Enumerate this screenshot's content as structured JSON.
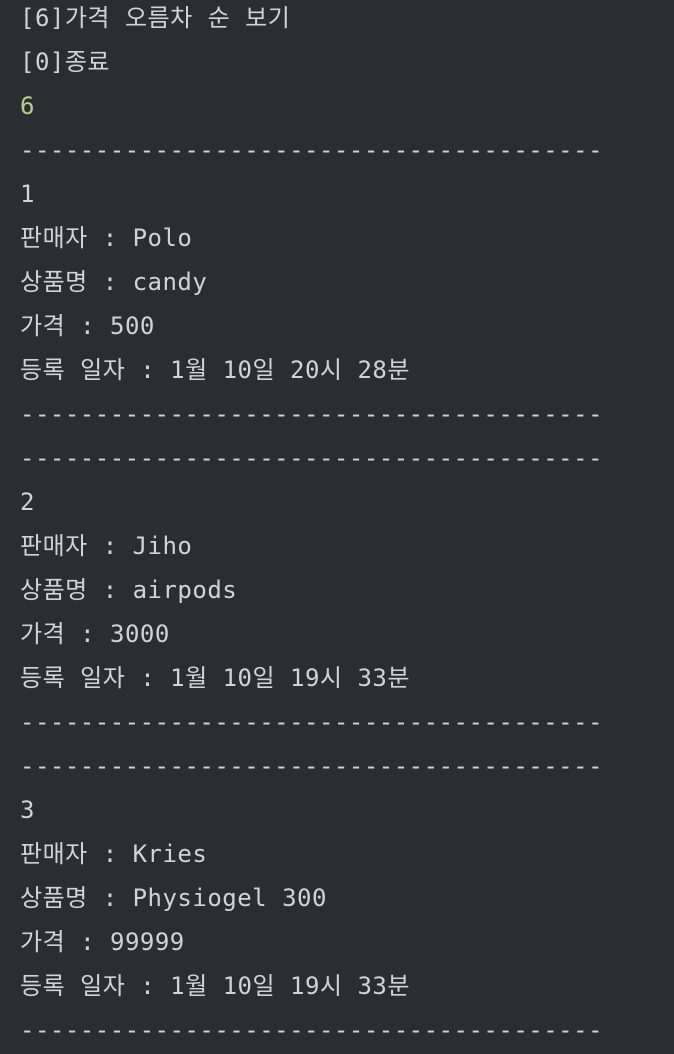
{
  "console": {
    "menu": {
      "sort_option": "[6]가격 오름차 순 보기",
      "exit_option": "[0]종료"
    },
    "user_input": "6",
    "separator": "---------------------------------------",
    "items": [
      {
        "index": "1",
        "seller": "판매자 : Polo",
        "product": "상품명 : candy",
        "price": "가격 : 500",
        "registered": "등록 일자 : 1월 10일 20시 28분"
      },
      {
        "index": "2",
        "seller": "판매자 : Jiho",
        "product": "상품명 : airpods",
        "price": "가격 : 3000",
        "registered": "등록 일자 : 1월 10일 19시 33분"
      },
      {
        "index": "3",
        "seller": "판매자 : Kries",
        "product": "상품명 : Physiogel 300",
        "price": "가격 : 99999",
        "registered": "등록 일자 : 1월 10일 19시 33분"
      }
    ]
  }
}
